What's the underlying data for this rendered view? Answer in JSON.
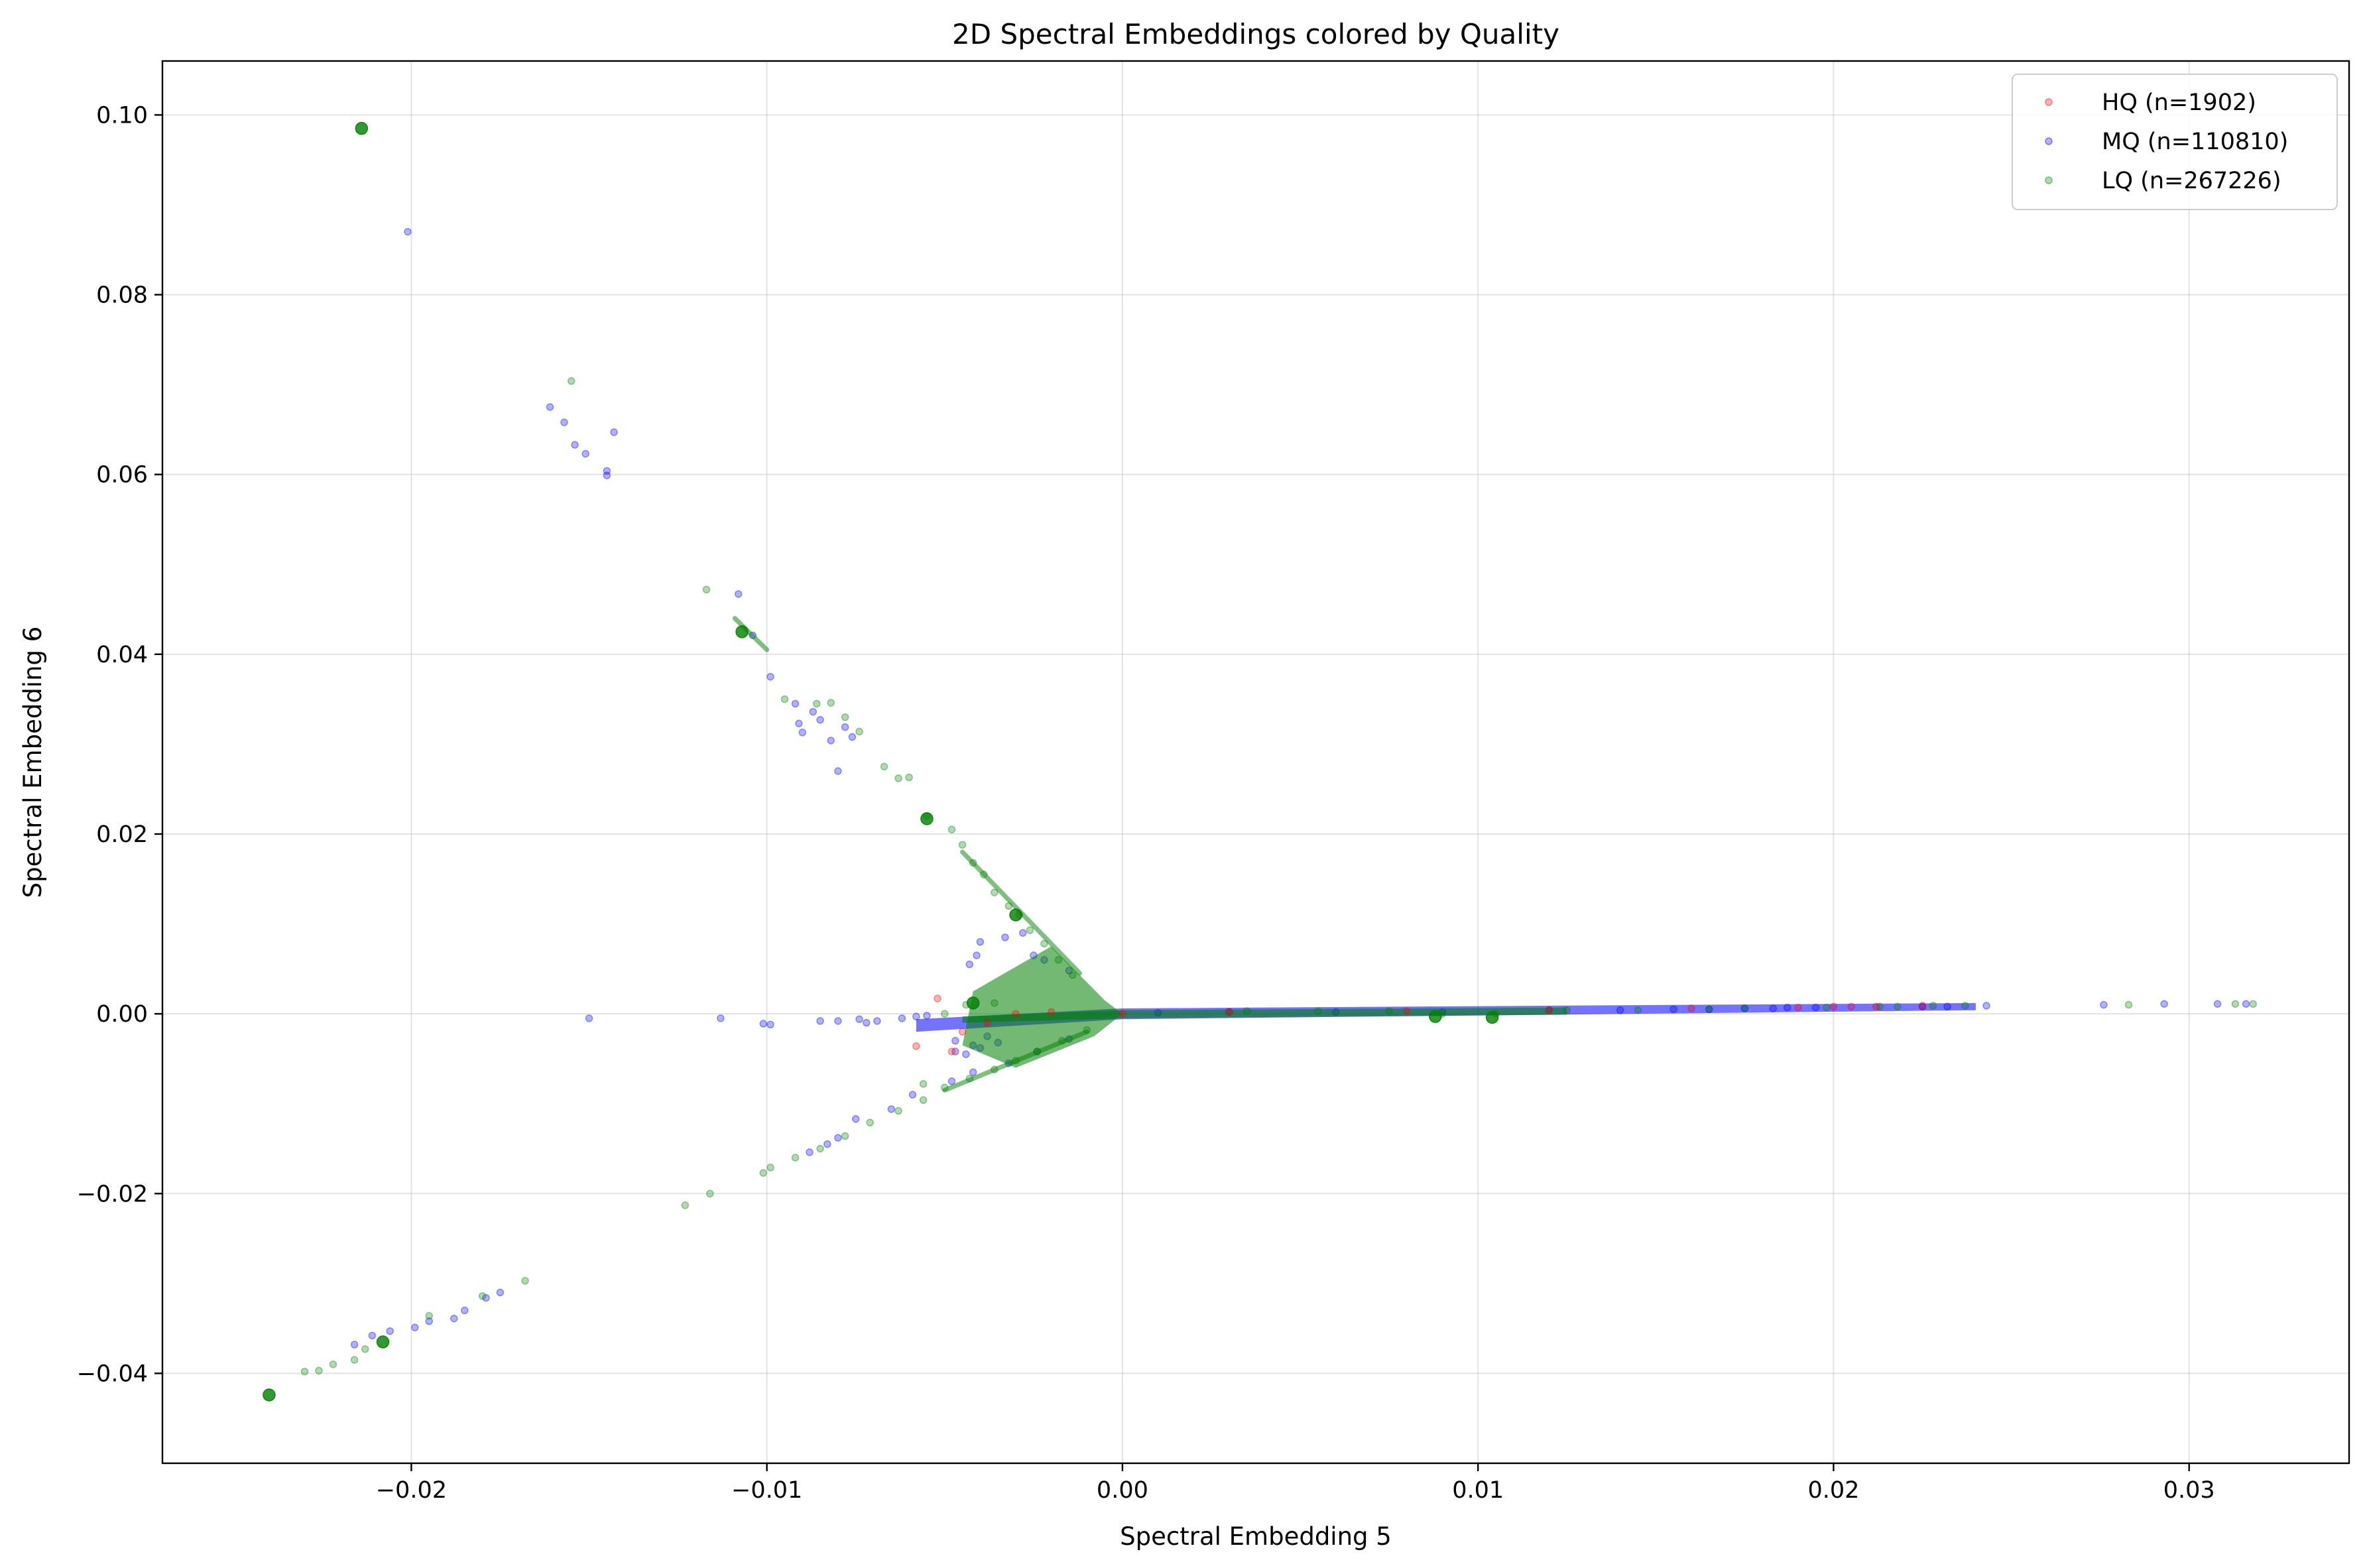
{
  "chart_data": {
    "type": "scatter",
    "title": "2D Spectral Embeddings colored by Quality",
    "xlabel": "Spectral Embedding 5",
    "ylabel": "Spectral Embedding 6",
    "xlim": [
      -0.027,
      0.0345
    ],
    "ylim": [
      -0.05,
      0.106
    ],
    "grid": true,
    "legend_position": "top-right",
    "x_ticks": [
      -0.02,
      -0.01,
      0.0,
      0.01,
      0.02,
      0.03
    ],
    "x_tick_labels": [
      "−0.02",
      "−0.01",
      "0.00",
      "0.01",
      "0.02",
      "0.03"
    ],
    "y_ticks": [
      -0.04,
      -0.02,
      0.0,
      0.02,
      0.04,
      0.06,
      0.08,
      0.1
    ],
    "y_tick_labels": [
      "−0.04",
      "−0.02",
      "0.00",
      "0.02",
      "0.04",
      "0.06",
      "0.08",
      "0.10"
    ],
    "series": [
      {
        "name": "HQ (n=1902)",
        "color": "#ff0000",
        "points": [
          [
            -0.0052,
            0.0017
          ],
          [
            -0.0058,
            -0.0036
          ],
          [
            -0.0048,
            -0.0042
          ],
          [
            -0.0045,
            -0.002
          ],
          [
            -0.0038,
            -0.001
          ],
          [
            -0.003,
            0.0
          ],
          [
            -0.002,
            0.0002
          ],
          [
            0.0,
            0.0
          ],
          [
            0.003,
            0.0002
          ],
          [
            0.008,
            0.0003
          ],
          [
            0.012,
            0.0004
          ],
          [
            0.016,
            0.0006
          ],
          [
            0.019,
            0.0007
          ],
          [
            0.02,
            0.0008
          ],
          [
            0.0205,
            0.0008
          ],
          [
            0.0212,
            0.0008
          ],
          [
            0.0225,
            0.0009
          ]
        ]
      },
      {
        "name": "MQ (n=110810)",
        "color": "#0000ff",
        "points": [
          [
            -0.0201,
            0.087
          ],
          [
            -0.0161,
            0.0675
          ],
          [
            -0.0157,
            0.0658
          ],
          [
            -0.0154,
            0.0633
          ],
          [
            -0.0151,
            0.0623
          ],
          [
            -0.0145,
            0.0599
          ],
          [
            -0.0145,
            0.0604
          ],
          [
            -0.0143,
            0.0647
          ],
          [
            -0.0108,
            0.0467
          ],
          [
            -0.0104,
            0.0421
          ],
          [
            -0.0099,
            0.0375
          ],
          [
            -0.0092,
            0.0345
          ],
          [
            -0.0091,
            0.0323
          ],
          [
            -0.009,
            0.0313
          ],
          [
            -0.0087,
            0.0336
          ],
          [
            -0.0085,
            0.0327
          ],
          [
            -0.0082,
            0.0304
          ],
          [
            -0.0078,
            0.0319
          ],
          [
            -0.008,
            0.027
          ],
          [
            -0.0076,
            0.0308
          ],
          [
            -0.0041,
            0.0065
          ],
          [
            -0.0043,
            0.0055
          ],
          [
            -0.004,
            0.008
          ],
          [
            -0.0033,
            0.0085
          ],
          [
            -0.0028,
            0.009
          ],
          [
            -0.0025,
            0.0065
          ],
          [
            -0.0022,
            0.006
          ],
          [
            -0.0015,
            0.0048
          ],
          [
            -0.0047,
            -0.003
          ],
          [
            -0.0044,
            -0.0045
          ],
          [
            -0.004,
            -0.0038
          ],
          [
            -0.0035,
            -0.0032
          ],
          [
            -0.0042,
            -0.0035
          ],
          [
            -0.0047,
            -0.0042
          ],
          [
            -0.0038,
            -0.0025
          ],
          [
            -0.0085,
            -0.0008
          ],
          [
            -0.008,
            -0.0008
          ],
          [
            -0.0074,
            -0.0006
          ],
          [
            -0.0072,
            -0.001
          ],
          [
            -0.0069,
            -0.0008
          ],
          [
            -0.0062,
            -0.0005
          ],
          [
            -0.0058,
            -0.0003
          ],
          [
            -0.0055,
            -0.0002
          ],
          [
            -0.0101,
            -0.0011
          ],
          [
            -0.0099,
            -0.0012
          ],
          [
            -0.0113,
            -0.0005
          ],
          [
            -0.015,
            -0.0005
          ],
          [
            -0.0088,
            -0.0154
          ],
          [
            -0.0083,
            -0.0145
          ],
          [
            -0.008,
            -0.0138
          ],
          [
            -0.0075,
            -0.0117
          ],
          [
            -0.0065,
            -0.0106
          ],
          [
            -0.0059,
            -0.009
          ],
          [
            -0.0048,
            -0.0075
          ],
          [
            -0.0042,
            -0.0065
          ],
          [
            -0.0032,
            -0.0055
          ],
          [
            -0.0024,
            -0.0042
          ],
          [
            -0.0015,
            -0.0028
          ],
          [
            -0.0211,
            -0.0358
          ],
          [
            -0.0206,
            -0.0353
          ],
          [
            -0.0199,
            -0.0349
          ],
          [
            -0.0195,
            -0.0342
          ],
          [
            -0.0188,
            -0.0339
          ],
          [
            -0.0185,
            -0.033
          ],
          [
            -0.0179,
            -0.0316
          ],
          [
            -0.0175,
            -0.031
          ],
          [
            -0.0216,
            -0.0368
          ],
          [
            0.001,
            0.0001
          ],
          [
            0.003,
            0.0002
          ],
          [
            0.006,
            0.0002
          ],
          [
            0.009,
            0.0002
          ],
          [
            0.012,
            0.0004
          ],
          [
            0.014,
            0.0004
          ],
          [
            0.0155,
            0.0005
          ],
          [
            0.0165,
            0.0005
          ],
          [
            0.0175,
            0.0006
          ],
          [
            0.0183,
            0.0006
          ],
          [
            0.0187,
            0.0007
          ],
          [
            0.0195,
            0.0007
          ],
          [
            0.0225,
            0.0008
          ],
          [
            0.0232,
            0.0008
          ],
          [
            0.0243,
            0.0009
          ],
          [
            0.0276,
            0.001
          ],
          [
            0.0293,
            0.0011
          ],
          [
            0.0308,
            0.0011
          ],
          [
            0.0316,
            0.0011
          ]
        ]
      },
      {
        "name": "LQ (n=267226)",
        "color": "#008000",
        "points": [
          [
            -0.0155,
            0.0704
          ],
          [
            -0.0117,
            0.0472
          ],
          [
            -0.0095,
            0.035
          ],
          [
            -0.0086,
            0.0345
          ],
          [
            -0.0082,
            0.0346
          ],
          [
            -0.0078,
            0.033
          ],
          [
            -0.0074,
            0.0314
          ],
          [
            -0.0067,
            0.0275
          ],
          [
            -0.0063,
            0.0262
          ],
          [
            -0.006,
            0.0263
          ],
          [
            -0.0055,
            0.022
          ],
          [
            -0.0048,
            0.0205
          ],
          [
            -0.0045,
            0.0188
          ],
          [
            -0.0042,
            0.0168
          ],
          [
            -0.0039,
            0.0155
          ],
          [
            -0.0036,
            0.0135
          ],
          [
            -0.0032,
            0.012
          ],
          [
            -0.0029,
            0.011
          ],
          [
            -0.0026,
            0.0093
          ],
          [
            -0.0022,
            0.0078
          ],
          [
            -0.0018,
            0.006
          ],
          [
            -0.0014,
            0.0043
          ],
          [
            -0.0168,
            -0.0297
          ],
          [
            -0.018,
            -0.0314
          ],
          [
            -0.0195,
            -0.0336
          ],
          [
            -0.0213,
            -0.0373
          ],
          [
            -0.0216,
            -0.0385
          ],
          [
            -0.0222,
            -0.039
          ],
          [
            -0.0226,
            -0.0397
          ],
          [
            -0.023,
            -0.0398
          ],
          [
            -0.0123,
            -0.0213
          ],
          [
            -0.0116,
            -0.02
          ],
          [
            -0.0101,
            -0.0177
          ],
          [
            -0.0099,
            -0.0171
          ],
          [
            -0.0092,
            -0.016
          ],
          [
            -0.0085,
            -0.015
          ],
          [
            -0.0078,
            -0.0136
          ],
          [
            -0.0071,
            -0.0121
          ],
          [
            -0.0063,
            -0.0108
          ],
          [
            -0.0056,
            -0.0096
          ],
          [
            -0.005,
            -0.0082
          ],
          [
            -0.0056,
            -0.0078
          ],
          [
            -0.0043,
            -0.0072
          ],
          [
            -0.0036,
            -0.0062
          ],
          [
            -0.003,
            -0.0052
          ],
          [
            -0.0024,
            -0.0042
          ],
          [
            -0.0017,
            -0.003
          ],
          [
            -0.001,
            -0.0018
          ],
          [
            -0.0036,
            0.0012
          ],
          [
            -0.0044,
            0.001
          ],
          [
            -0.005,
            0.0
          ],
          [
            0.0035,
            0.0003
          ],
          [
            0.0055,
            0.0003
          ],
          [
            0.0075,
            0.0003
          ],
          [
            0.009,
            0.0
          ],
          [
            0.0105,
            0.0
          ],
          [
            0.0125,
            0.0004
          ],
          [
            0.0145,
            0.0004
          ],
          [
            0.0165,
            0.0005
          ],
          [
            0.0175,
            0.0006
          ],
          [
            0.0198,
            0.0007
          ],
          [
            0.0213,
            0.0008
          ],
          [
            0.0218,
            0.0008
          ],
          [
            0.0228,
            0.0009
          ],
          [
            0.0237,
            0.0009
          ],
          [
            0.0283,
            0.001
          ],
          [
            0.0313,
            0.0011
          ],
          [
            0.0318,
            0.0011
          ]
        ],
        "clusters": [
          [
            -0.0214,
            0.0985
          ],
          [
            -0.024,
            -0.0424
          ],
          [
            -0.0208,
            -0.0365
          ],
          [
            -0.0107,
            0.0425
          ],
          [
            -0.0055,
            0.0217
          ],
          [
            -0.003,
            0.011
          ],
          [
            0.0088,
            -0.0003
          ],
          [
            0.0104,
            -0.0004
          ],
          [
            -0.0042,
            0.0012
          ]
        ]
      }
    ]
  }
}
